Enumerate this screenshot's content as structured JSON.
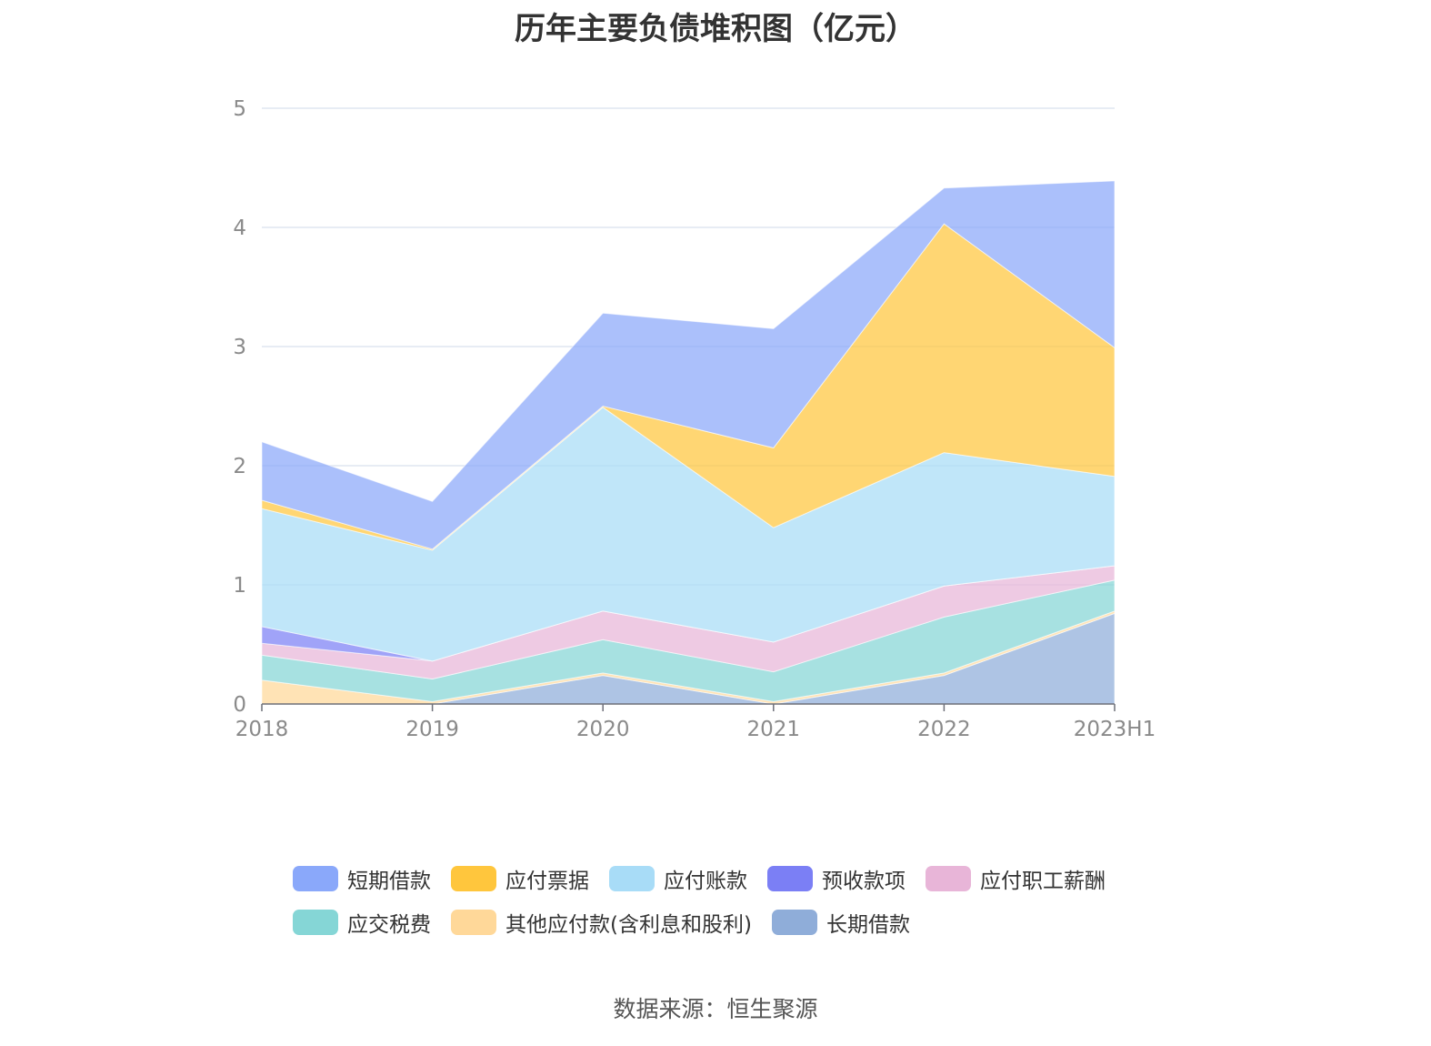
{
  "chart_data": {
    "type": "area",
    "stacked": true,
    "title": "历年主要负债堆积图（亿元）",
    "x": [
      "2018",
      "2019",
      "2020",
      "2021",
      "2022",
      "2023H1"
    ],
    "yticks": [
      "0",
      "1",
      "2",
      "3",
      "4",
      "5"
    ],
    "ylim": [
      0,
      5
    ],
    "grid": true,
    "legend_position": "bottom",
    "series": [
      {
        "name": "长期借款",
        "color": "#8fadd9",
        "values": [
          0,
          0,
          0.24,
          0,
          0.24,
          0.76
        ]
      },
      {
        "name": "其他应付款(含利息和股利)",
        "color": "#ffd899",
        "values": [
          0.2,
          0.02,
          0.02,
          0.02,
          0.02,
          0.02
        ]
      },
      {
        "name": "应交税费",
        "color": "#85d6d6",
        "values": [
          0.21,
          0.19,
          0.28,
          0.25,
          0.47,
          0.26
        ]
      },
      {
        "name": "应付职工薪酬",
        "color": "#e8b5d8",
        "values": [
          0.1,
          0.15,
          0.24,
          0.25,
          0.26,
          0.12
        ]
      },
      {
        "name": "预收款项",
        "color": "#7b7ff5",
        "values": [
          0.14,
          0,
          0,
          0,
          0,
          0
        ]
      },
      {
        "name": "应付账款",
        "color": "#a8dcf7",
        "values": [
          0.99,
          0.93,
          1.71,
          0.96,
          1.12,
          0.75
        ]
      },
      {
        "name": "应付票据",
        "color": "#ffc63d",
        "values": [
          0.07,
          0.01,
          0.01,
          0.67,
          1.92,
          1.08
        ]
      },
      {
        "name": "短期借款",
        "color": "#8aa8fa",
        "values": [
          0.49,
          0.4,
          0.78,
          1.0,
          0.3,
          1.4
        ]
      }
    ]
  },
  "legend": {
    "row1": [
      {
        "label": "短期借款",
        "color": "#8aa8fa"
      },
      {
        "label": "应付票据",
        "color": "#ffc63d"
      },
      {
        "label": "应付账款",
        "color": "#a8dcf7"
      },
      {
        "label": "预收款项",
        "color": "#7b7ff5"
      },
      {
        "label": "应付职工薪酬",
        "color": "#e8b5d8"
      }
    ],
    "row2": [
      {
        "label": "应交税费",
        "color": "#85d6d6"
      },
      {
        "label": "其他应付款(含利息和股利)",
        "color": "#ffd899"
      },
      {
        "label": "长期借款",
        "color": "#8fadd9"
      }
    ]
  },
  "source": "数据来源：恒生聚源"
}
